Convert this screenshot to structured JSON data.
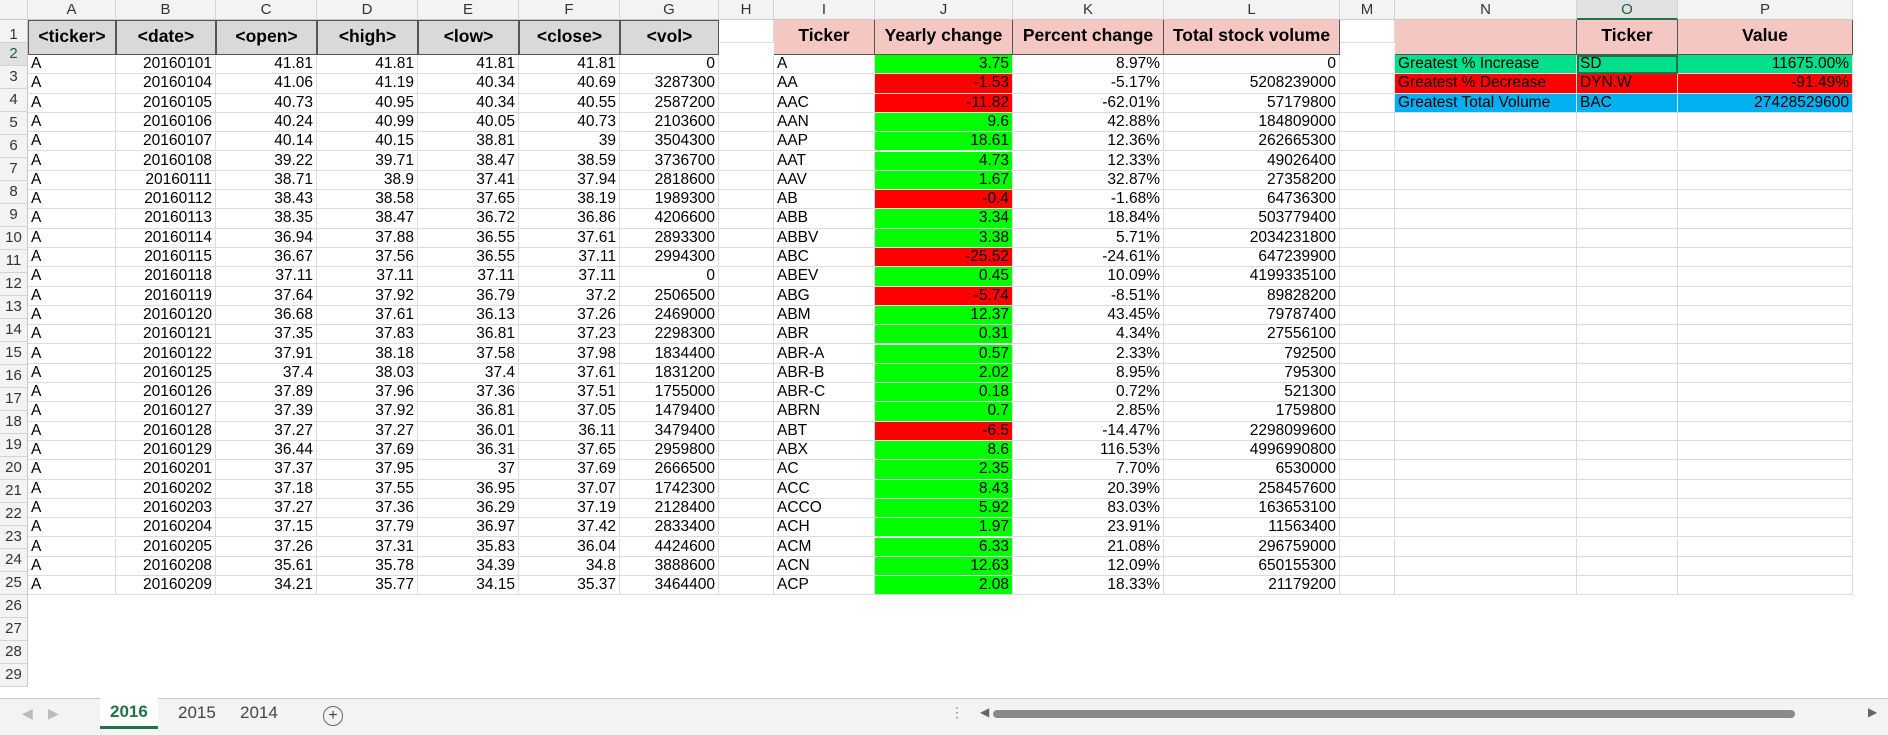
{
  "columns": [
    "A",
    "B",
    "C",
    "D",
    "E",
    "F",
    "G",
    "H",
    "I",
    "J",
    "K",
    "L",
    "M",
    "N",
    "O",
    "P"
  ],
  "row_numbers": [
    "1",
    "2",
    "3",
    "4",
    "5",
    "6",
    "7",
    "8",
    "9",
    "10",
    "11",
    "12",
    "13",
    "14",
    "15",
    "16",
    "17",
    "18",
    "19",
    "20",
    "21",
    "22",
    "23",
    "24",
    "25",
    "26",
    "27",
    "28",
    "29"
  ],
  "headers": {
    "ticker": "<ticker>",
    "date": "<date>",
    "open": "<open>",
    "high": "<high>",
    "low": "<low>",
    "close": "<close>",
    "vol": "<vol>",
    "summary_ticker": "Ticker",
    "yearly_change": "Yearly change",
    "percent_change": "Percent change",
    "total_volume": "Total stock volume",
    "greatest_ticker": "Ticker",
    "greatest_value": "Value"
  },
  "data_rows": [
    [
      "A",
      "20160101",
      "41.81",
      "41.81",
      "41.81",
      "41.81",
      "0"
    ],
    [
      "A",
      "20160104",
      "41.06",
      "41.19",
      "40.34",
      "40.69",
      "3287300"
    ],
    [
      "A",
      "20160105",
      "40.73",
      "40.95",
      "40.34",
      "40.55",
      "2587200"
    ],
    [
      "A",
      "20160106",
      "40.24",
      "40.99",
      "40.05",
      "40.73",
      "2103600"
    ],
    [
      "A",
      "20160107",
      "40.14",
      "40.15",
      "38.81",
      "39",
      "3504300"
    ],
    [
      "A",
      "20160108",
      "39.22",
      "39.71",
      "38.47",
      "38.59",
      "3736700"
    ],
    [
      "A",
      "20160111",
      "38.71",
      "38.9",
      "37.41",
      "37.94",
      "2818600"
    ],
    [
      "A",
      "20160112",
      "38.43",
      "38.58",
      "37.65",
      "38.19",
      "1989300"
    ],
    [
      "A",
      "20160113",
      "38.35",
      "38.47",
      "36.72",
      "36.86",
      "4206600"
    ],
    [
      "A",
      "20160114",
      "36.94",
      "37.88",
      "36.55",
      "37.61",
      "2893300"
    ],
    [
      "A",
      "20160115",
      "36.67",
      "37.56",
      "36.55",
      "37.11",
      "2994300"
    ],
    [
      "A",
      "20160118",
      "37.11",
      "37.11",
      "37.11",
      "37.11",
      "0"
    ],
    [
      "A",
      "20160119",
      "37.64",
      "37.92",
      "36.79",
      "37.2",
      "2506500"
    ],
    [
      "A",
      "20160120",
      "36.68",
      "37.61",
      "36.13",
      "37.26",
      "2469000"
    ],
    [
      "A",
      "20160121",
      "37.35",
      "37.83",
      "36.81",
      "37.23",
      "2298300"
    ],
    [
      "A",
      "20160122",
      "37.91",
      "38.18",
      "37.58",
      "37.98",
      "1834400"
    ],
    [
      "A",
      "20160125",
      "37.4",
      "38.03",
      "37.4",
      "37.61",
      "1831200"
    ],
    [
      "A",
      "20160126",
      "37.89",
      "37.96",
      "37.36",
      "37.51",
      "1755000"
    ],
    [
      "A",
      "20160127",
      "37.39",
      "37.92",
      "36.81",
      "37.05",
      "1479400"
    ],
    [
      "A",
      "20160128",
      "37.27",
      "37.27",
      "36.01",
      "36.11",
      "3479400"
    ],
    [
      "A",
      "20160129",
      "36.44",
      "37.69",
      "36.31",
      "37.65",
      "2959800"
    ],
    [
      "A",
      "20160201",
      "37.37",
      "37.95",
      "37",
      "37.69",
      "2666500"
    ],
    [
      "A",
      "20160202",
      "37.18",
      "37.55",
      "36.95",
      "37.07",
      "1742300"
    ],
    [
      "A",
      "20160203",
      "37.27",
      "37.36",
      "36.29",
      "37.19",
      "2128400"
    ],
    [
      "A",
      "20160204",
      "37.15",
      "37.79",
      "36.97",
      "37.42",
      "2833400"
    ],
    [
      "A",
      "20160205",
      "37.26",
      "37.31",
      "35.83",
      "36.04",
      "4424600"
    ],
    [
      "A",
      "20160208",
      "35.61",
      "35.78",
      "34.39",
      "34.8",
      "3888600"
    ],
    [
      "A",
      "20160209",
      "34.21",
      "35.77",
      "34.15",
      "35.37",
      "3464400"
    ]
  ],
  "summary_rows": [
    [
      "A",
      "3.75",
      "8.97%",
      "0"
    ],
    [
      "AA",
      "-1.53",
      "-5.17%",
      "5208239000"
    ],
    [
      "AAC",
      "-11.82",
      "-62.01%",
      "57179800"
    ],
    [
      "AAN",
      "9.6",
      "42.88%",
      "184809000"
    ],
    [
      "AAP",
      "18.61",
      "12.36%",
      "262665300"
    ],
    [
      "AAT",
      "4.73",
      "12.33%",
      "49026400"
    ],
    [
      "AAV",
      "1.67",
      "32.87%",
      "27358200"
    ],
    [
      "AB",
      "-0.4",
      "-1.68%",
      "64736300"
    ],
    [
      "ABB",
      "3.34",
      "18.84%",
      "503779400"
    ],
    [
      "ABBV",
      "3.38",
      "5.71%",
      "2034231800"
    ],
    [
      "ABC",
      "-25.52",
      "-24.61%",
      "647239900"
    ],
    [
      "ABEV",
      "0.45",
      "10.09%",
      "4199335100"
    ],
    [
      "ABG",
      "-5.74",
      "-8.51%",
      "89828200"
    ],
    [
      "ABM",
      "12.37",
      "43.45%",
      "79787400"
    ],
    [
      "ABR",
      "0.31",
      "4.34%",
      "27556100"
    ],
    [
      "ABR-A",
      "0.57",
      "2.33%",
      "792500"
    ],
    [
      "ABR-B",
      "2.02",
      "8.95%",
      "795300"
    ],
    [
      "ABR-C",
      "0.18",
      "0.72%",
      "521300"
    ],
    [
      "ABRN",
      "0.7",
      "2.85%",
      "1759800"
    ],
    [
      "ABT",
      "-6.5",
      "-14.47%",
      "2298099600"
    ],
    [
      "ABX",
      "8.6",
      "116.53%",
      "4996990800"
    ],
    [
      "AC",
      "2.35",
      "7.70%",
      "6530000"
    ],
    [
      "ACC",
      "8.43",
      "20.39%",
      "258457600"
    ],
    [
      "ACCO",
      "5.92",
      "83.03%",
      "163653100"
    ],
    [
      "ACH",
      "1.97",
      "23.91%",
      "11563400"
    ],
    [
      "ACM",
      "6.33",
      "21.08%",
      "296759000"
    ],
    [
      "ACN",
      "12.63",
      "12.09%",
      "650155300"
    ],
    [
      "ACP",
      "2.08",
      "18.33%",
      "21179200"
    ]
  ],
  "greatest": [
    {
      "label": "Greatest % Increase",
      "ticker": "SD",
      "value": "11675.00%"
    },
    {
      "label": "Greatest % Decrease",
      "ticker": "DYN.W",
      "value": "-91.49%"
    },
    {
      "label": "Greatest Total Volume",
      "ticker": "BAC",
      "value": "27428529600"
    }
  ],
  "sheet_tabs": [
    {
      "label": "2016",
      "active": true
    },
    {
      "label": "2015",
      "active": false
    },
    {
      "label": "2014",
      "active": false
    }
  ],
  "add_sheet_icon": "+",
  "selected_cell": "O2",
  "colors": {
    "positive_fill": "#00ff00",
    "negative_fill": "#ff0000",
    "increase_fill": "#00e08a",
    "volume_fill": "#00b0f0",
    "header_pink": "#f4c7c3",
    "header_gray": "#d9d9d9",
    "excel_green": "#217346"
  }
}
